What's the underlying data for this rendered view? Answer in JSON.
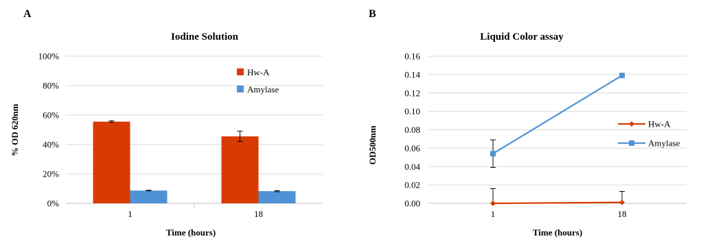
{
  "panels": {
    "a": {
      "letter": "A"
    },
    "b": {
      "letter": "B"
    }
  },
  "colors": {
    "hw_a": "#d83b01",
    "amylase": "#4f93d6",
    "axis": "#bfbfbf",
    "grid": "#d9d9d9"
  },
  "chart_data": [
    {
      "type": "bar",
      "title": "Iodine  Solution",
      "xlabel": "Time (hours)",
      "ylabel": "% OD 620nm",
      "categories": [
        "1",
        "18"
      ],
      "ylim": [
        0,
        100
      ],
      "yticks": [
        "0%",
        "20%",
        "40%",
        "60%",
        "80%",
        "100%"
      ],
      "ytick_values": [
        0,
        20,
        40,
        60,
        80,
        100
      ],
      "grid": true,
      "legend_position": "top-right",
      "series": [
        {
          "name": "Hw-A",
          "values": [
            55.5,
            45.5
          ],
          "errors": [
            0.5,
            3.5
          ]
        },
        {
          "name": "Amylase",
          "values": [
            8.7,
            8.3
          ],
          "errors": [
            0.2,
            0.4
          ]
        }
      ]
    },
    {
      "type": "line",
      "title": "Liquid Color assay",
      "xlabel": "Time (hours)",
      "ylabel": "OD500nm",
      "categories": [
        "1",
        "18"
      ],
      "ylim": [
        0,
        0.16
      ],
      "yticks": [
        "0.00",
        "0.02",
        "0.04",
        "0.06",
        "0.08",
        "0.10",
        "0.12",
        "0.14",
        "0.16"
      ],
      "ytick_values": [
        0,
        0.02,
        0.04,
        0.06,
        0.08,
        0.1,
        0.12,
        0.14,
        0.16
      ],
      "grid": true,
      "legend_position": "right",
      "series": [
        {
          "name": "Hw-A",
          "values": [
            0.0,
            0.001
          ],
          "errors": [
            0.016,
            0.012
          ]
        },
        {
          "name": "Amylase",
          "values": [
            0.054,
            0.139
          ],
          "errors": [
            0.015,
            0.0
          ]
        }
      ]
    }
  ]
}
